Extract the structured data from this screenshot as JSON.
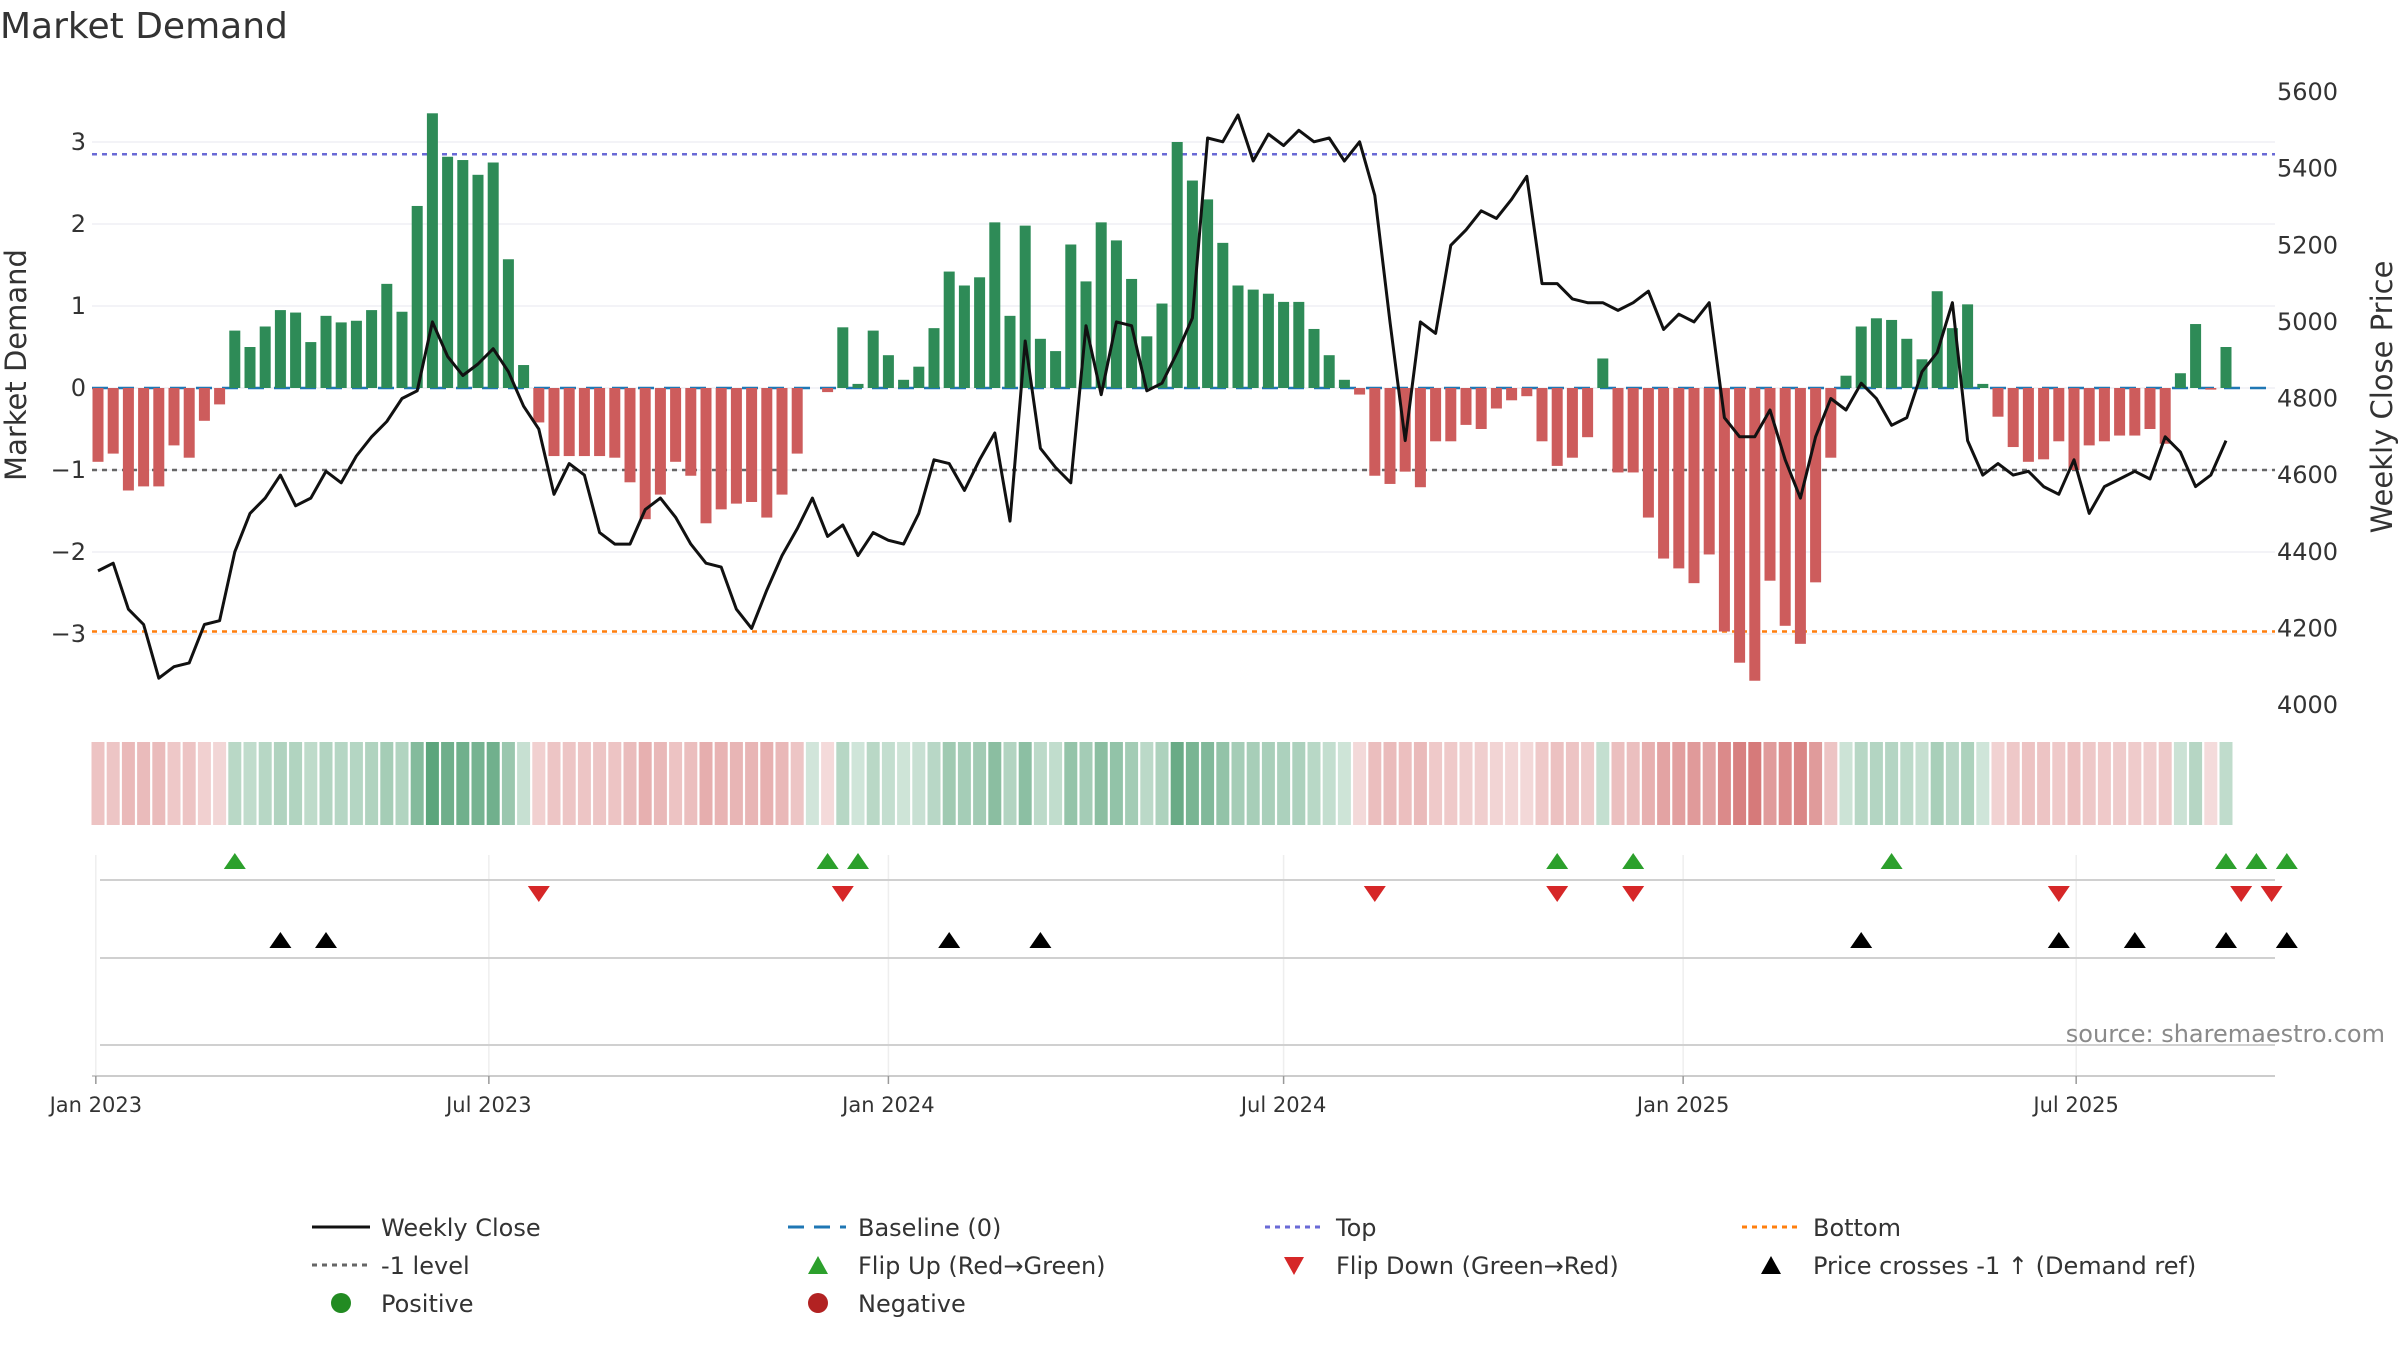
{
  "chart_data": {
    "type": "bar",
    "title": "Market Demand",
    "ylabel": "Market Demand",
    "y2label": "Weekly Close Price",
    "ylim": [
      -3.9,
      3.8
    ],
    "y2lim": [
      3950,
      5650
    ],
    "yticks": [
      "3",
      "2",
      "1",
      "0",
      "−1",
      "−2",
      "−3"
    ],
    "y2ticks": [
      "5600",
      "5400",
      "5200",
      "5000",
      "4800",
      "4600",
      "4400",
      "4200",
      "4000"
    ],
    "date_ticks": [
      "Jan 2023",
      "Jul 2023",
      "Jan 2024",
      "Jul 2024",
      "Jan 2025",
      "Jul 2025"
    ],
    "start_week": "2023-01-02",
    "top_level": 2.85,
    "bottom_level": -2.97,
    "minus_one_level": -1,
    "demand": [
      -0.9,
      -0.8,
      -1.25,
      -1.2,
      -1.2,
      -0.7,
      -0.85,
      -0.4,
      -0.2,
      0.7,
      0.5,
      0.75,
      0.95,
      0.92,
      0.56,
      0.88,
      0.8,
      0.82,
      0.95,
      1.27,
      0.93,
      2.22,
      3.35,
      2.82,
      2.78,
      2.6,
      2.75,
      1.57,
      0.28,
      -0.42,
      -0.83,
      -0.83,
      -0.83,
      -0.83,
      -0.85,
      -1.15,
      -1.6,
      -1.3,
      -0.9,
      -1.07,
      -1.65,
      -1.48,
      -1.41,
      -1.39,
      -1.58,
      -1.3,
      -0.8,
      0,
      -0.05,
      0.74,
      0.05,
      0.7,
      0.4,
      0.1,
      0.26,
      0.73,
      1.42,
      1.25,
      1.35,
      2.02,
      0.88,
      1.98,
      0.6,
      0.45,
      1.75,
      1.3,
      2.02,
      1.8,
      1.33,
      0.63,
      1.03,
      3.0,
      2.53,
      2.3,
      1.77,
      1.25,
      1.2,
      1.15,
      1.05,
      1.05,
      0.72,
      0.4,
      0.1,
      -0.08,
      -1.07,
      -1.17,
      -1.02,
      -1.21,
      -0.65,
      -0.65,
      -0.45,
      -0.5,
      -0.25,
      -0.15,
      -0.1,
      -0.65,
      -0.95,
      -0.85,
      -0.6,
      0.36,
      -1.03,
      -1.03,
      -1.58,
      -2.08,
      -2.2,
      -2.38,
      -2.03,
      -2.97,
      -3.35,
      -3.57,
      -2.35,
      -2.9,
      -3.12,
      -2.37,
      -0.85,
      0.15,
      0.75,
      0.85,
      0.83,
      0.6,
      0.35,
      1.18,
      0.73,
      1.02,
      0.05,
      -0.35,
      -0.72,
      -0.9,
      -0.87,
      -0.65,
      -1.0,
      -0.7,
      -0.65,
      -0.58,
      -0.58,
      -0.5,
      -0.68,
      0.18,
      0.78,
      -0.02,
      0.5
    ],
    "close": [
      4350,
      4370,
      4250,
      4210,
      4070,
      4100,
      4110,
      4210,
      4220,
      4400,
      4500,
      4540,
      4600,
      4520,
      4540,
      4610,
      4580,
      4650,
      4700,
      4740,
      4800,
      4820,
      5000,
      4910,
      4860,
      4890,
      4930,
      4870,
      4780,
      4720,
      4550,
      4630,
      4600,
      4450,
      4420,
      4420,
      4510,
      4540,
      4490,
      4420,
      4370,
      4360,
      4250,
      4200,
      4300,
      4390,
      4460,
      4540,
      4440,
      4470,
      4390,
      4450,
      4430,
      4420,
      4500,
      4640,
      4630,
      4560,
      4640,
      4710,
      4480,
      4950,
      4670,
      4620,
      4580,
      4990,
      4810,
      5000,
      4990,
      4820,
      4840,
      4920,
      5010,
      5480,
      5470,
      5540,
      5420,
      5490,
      5460,
      5500,
      5470,
      5480,
      5420,
      5470,
      5330,
      5000,
      4690,
      5000,
      4970,
      5200,
      5240,
      5290,
      5270,
      5320,
      5380,
      5100,
      5100,
      5060,
      5050,
      5050,
      5030,
      5050,
      5080,
      4980,
      5020,
      5000,
      5050,
      4750,
      4700,
      4700,
      4770,
      4640,
      4540,
      4700,
      4800,
      4770,
      4840,
      4800,
      4730,
      4750,
      4870,
      4920,
      5050,
      4690,
      4600,
      4630,
      4600,
      4610,
      4570,
      4550,
      4640,
      4500,
      4570,
      4590,
      4610,
      4590,
      4700,
      4660,
      4570,
      4600,
      4690
    ],
    "flip_up_weeks": [
      9,
      48,
      50,
      96,
      101,
      118,
      140,
      142,
      144
    ],
    "flip_down_weeks": [
      29,
      49,
      84,
      96,
      101,
      129,
      141,
      143
    ],
    "price_cross_weeks": [
      12,
      15,
      56,
      62,
      116,
      129,
      134,
      140,
      144
    ]
  },
  "source": "source: sharemaestro.com",
  "legend": {
    "weekly_close": "Weekly Close",
    "baseline": "Baseline (0)",
    "top": "Top",
    "bottom": "Bottom",
    "minus_one": "-1 level",
    "flip_up": "Flip Up (Red→Green)",
    "flip_down": "Flip Down (Green→Red)",
    "price_cross": "Price crosses -1 ↑ (Demand ref)",
    "positive": "Positive",
    "negative": "Negative"
  },
  "colors": {
    "positive": "#2e8b57",
    "negative": "#cd5c5c",
    "close": "#111111",
    "baseline": "#1f77b4",
    "top": "#6a6ad6",
    "bottom": "#ff7f0e",
    "minus_one": "#666666",
    "flip_up": "#2ca02c",
    "flip_down": "#d62728",
    "price_cross": "#000000",
    "positive_dot": "#228b22",
    "negative_dot": "#b22222"
  }
}
